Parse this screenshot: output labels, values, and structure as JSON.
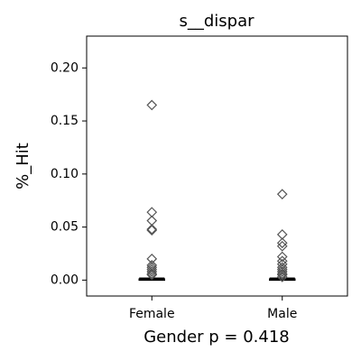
{
  "chart_data": {
    "type": "box",
    "title": "s__dispar",
    "y_label": "%_Hit",
    "x_label": "Gender p = 0.418",
    "categories": [
      "Female",
      "Male"
    ],
    "boxes": [
      {
        "whislo": 0,
        "q1": 0,
        "med": 0.0005,
        "q3": 0.001,
        "whishi": 0.002,
        "fliers": [
          0.165,
          0.064,
          0.056,
          0.048,
          0.047,
          0.02,
          0.014,
          0.012,
          0.01,
          0.008,
          0.006,
          0.005
        ]
      },
      {
        "whislo": 0,
        "q1": 0,
        "med": 0.0005,
        "q3": 0.001,
        "whishi": 0.002,
        "fliers": [
          0.081,
          0.043,
          0.035,
          0.032,
          0.022,
          0.018,
          0.015,
          0.012,
          0.01,
          0.008,
          0.006,
          0.005,
          0.003
        ]
      }
    ],
    "color": "#555555",
    "ylim": [
      -0.015,
      0.23
    ],
    "yticks": [
      {
        "value": 0,
        "label": "0.00"
      },
      {
        "value": 0.05,
        "label": "0.05"
      },
      {
        "value": 0.1,
        "label": "0.10"
      },
      {
        "value": 0.15,
        "label": "0.15"
      },
      {
        "value": 0.2,
        "label": "0.20"
      }
    ]
  }
}
